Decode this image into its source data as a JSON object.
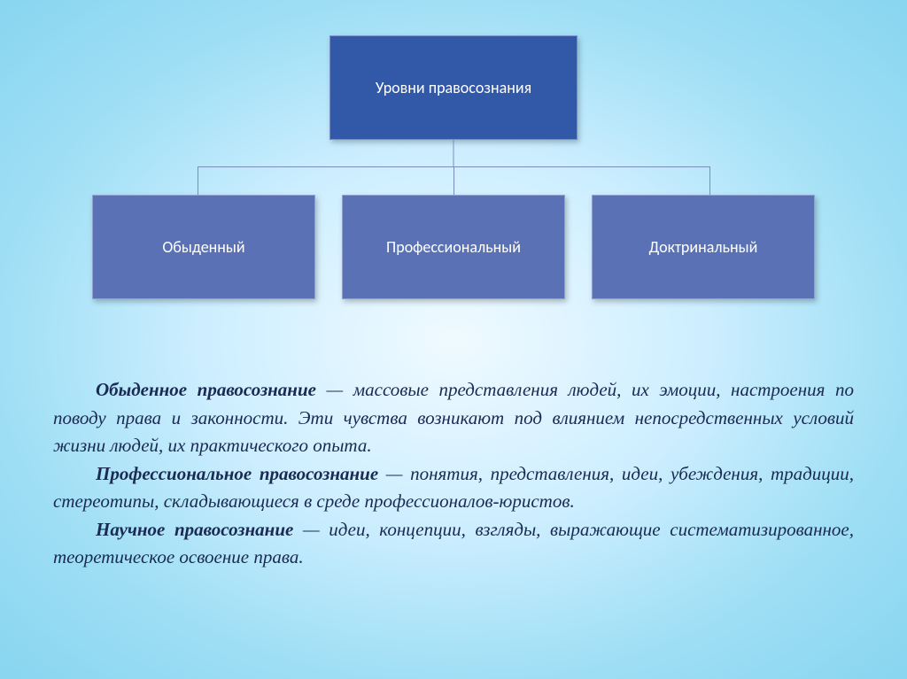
{
  "chart": {
    "type": "tree",
    "root": {
      "label": "Уровни правосознания",
      "bg_color": "#3258a8",
      "text_color": "#ffffff",
      "fontsize": 18
    },
    "children": [
      {
        "label": "Обыденный",
        "bg_color": "#5a72b5",
        "text_color": "#ffffff",
        "fontsize": 18
      },
      {
        "label": "Профессиональный",
        "bg_color": "#5a72b5",
        "text_color": "#ffffff",
        "fontsize": 18
      },
      {
        "label": "Доктринальный",
        "bg_color": "#5a72b5",
        "text_color": "#ffffff",
        "fontsize": 18
      }
    ],
    "connector_color": "#7a8dbd",
    "box_shadow": "2px 3px 6px rgba(0,0,0,0.25)",
    "child_box_width": 252,
    "child_gap": 30,
    "h_line_left_pct": 12,
    "h_line_right_pct": 88
  },
  "paragraphs": {
    "fontsize": 21,
    "color": "#1a2a52",
    "font_style": "italic",
    "p1_term": "Обыденное правосознание",
    "p1_rest": " — массовые представления людей, их эмоции, настроения по поводу права и законности. Эти чувства возникают под влиянием непосредственных условий жизни людей, их практического опыта.",
    "p2_term": "Профессиональное правосознание",
    "p2_rest": " — понятия, представления, идеи, убеждения, традиции, стереотипы, складывающиеся в среде профессионалов-юристов.",
    "p3_term": "Научное правосознание",
    "p3_rest": " — идеи, концепции, взгляды, выражающие систематизированное, теоретическое освоение права."
  },
  "background": {
    "gradient": "radial-gradient(ellipse at center, #f0faff 0%, #cceeff 40%, #a0dff5 70%, #88d5f0 100%)"
  }
}
